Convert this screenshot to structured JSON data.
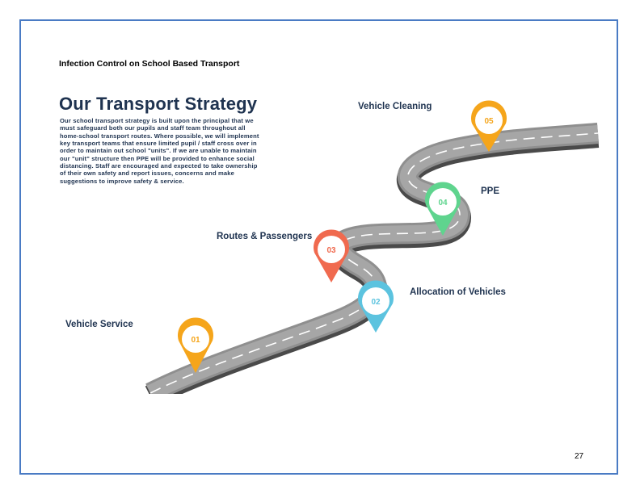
{
  "header": {
    "text": "Infection Control on School Based Transport"
  },
  "title": "Our Transport Strategy",
  "body_text": "Our school transport strategy is built upon the principal that we must safeguard both our pupils and staff team throughout all home-school transport routes. Where possible, we will implement key transport teams that ensure limited pupil / staff cross over in order to maintain out school \"units\". If we are unable to maintain our \"unit\" structure then PPE will be provided to enhance social distancing. Staff are encouraged and expected to take ownership of their own safety and report issues, concerns and make suggestions to improve safety & service.",
  "steps": [
    {
      "number": "01",
      "label": "Vehicle Service",
      "color": "#f5a51b"
    },
    {
      "number": "02",
      "label": "Allocation of Vehicles",
      "color": "#5cc3df"
    },
    {
      "number": "03",
      "label": "Routes & Passengers",
      "color": "#f06a4f"
    },
    {
      "number": "04",
      "label": "PPE",
      "color": "#5fd48e"
    },
    {
      "number": "05",
      "label": "Vehicle Cleaning",
      "color": "#f5a51b"
    }
  ],
  "page_number": "27",
  "colors": {
    "frame": "#4a7bc4",
    "text_dark": "#1f3350",
    "road": "#8c8c8c"
  }
}
